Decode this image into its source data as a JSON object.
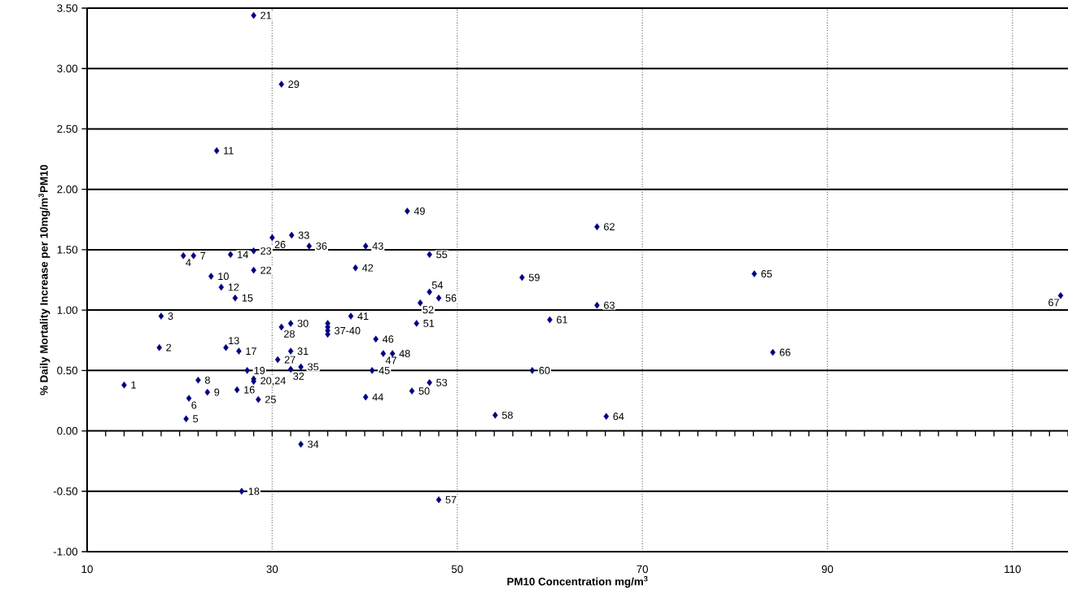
{
  "chart_data": {
    "type": "scatter",
    "xlabel": "PM10 Concentration mg/m$^{3}$",
    "ylabel": "% Daily Mortality Increase per 10mg/m$^{3}$PM10",
    "x": [
      14.0,
      17.8,
      18.0,
      20.4,
      20.7,
      21.0,
      21.5,
      22.0,
      23.0,
      23.4,
      24.0,
      24.5,
      25.0,
      25.5,
      26.0,
      26.2,
      26.4,
      26.7,
      27.3,
      28.0,
      28.0,
      28.0,
      28.0,
      28.0,
      28.5,
      30.0,
      30.6,
      31.0,
      31.0,
      32.0,
      32.0,
      32.0,
      32.1,
      33.1,
      33.1,
      34.0,
      36.0,
      36.0,
      36.0,
      36.0,
      38.5,
      39.0,
      40.1,
      40.1,
      40.8,
      41.2,
      42.0,
      43.0,
      44.6,
      45.1,
      45.6,
      46.0,
      47.0,
      47.0,
      47.0,
      48.0,
      48.0,
      54.1,
      57.0,
      58.1,
      60.0,
      65.1,
      65.1,
      66.1,
      82.1,
      84.1,
      115.2
    ],
    "values": [
      0.38,
      0.69,
      0.95,
      1.45,
      0.1,
      0.27,
      1.45,
      0.42,
      0.32,
      1.28,
      2.32,
      1.19,
      0.69,
      1.46,
      1.1,
      0.34,
      0.66,
      -0.5,
      0.5,
      0.43,
      3.44,
      1.33,
      1.49,
      0.41,
      0.26,
      1.6,
      0.59,
      0.86,
      2.87,
      0.89,
      0.66,
      0.51,
      1.62,
      -0.11,
      0.53,
      1.53,
      0.89,
      0.86,
      0.83,
      0.8,
      0.95,
      1.35,
      1.53,
      0.28,
      0.5,
      0.76,
      0.64,
      0.64,
      1.82,
      0.33,
      0.89,
      1.06,
      0.4,
      1.15,
      1.46,
      1.1,
      -0.57,
      0.13,
      1.27,
      0.5,
      0.92,
      1.69,
      1.04,
      0.12,
      1.3,
      0.65,
      1.12
    ],
    "color": "#000080",
    "marker": "diamond",
    "grid": true,
    "xlim": [
      10,
      116
    ],
    "ylim": [
      -1,
      3.5
    ],
    "xticks": [
      10,
      {
        "value": 12,
        "label": null
      },
      {
        "value": 14,
        "label": null
      },
      {
        "value": 16,
        "label": null
      },
      {
        "value": 18,
        "label": null
      },
      {
        "value": 20,
        "label": null
      },
      {
        "value": 22,
        "label": null
      },
      {
        "value": 24,
        "label": null
      },
      {
        "value": 26,
        "label": null
      },
      {
        "value": 28,
        "label": null
      },
      30,
      {
        "value": 32,
        "label": null
      },
      {
        "value": 34,
        "label": null
      },
      {
        "value": 36,
        "label": null
      },
      {
        "value": 38,
        "label": null
      },
      {
        "value": 40,
        "label": null
      },
      {
        "value": 42,
        "label": null
      },
      {
        "value": 44,
        "label": null
      },
      {
        "value": 46,
        "label": null
      },
      {
        "value": 48,
        "label": null
      },
      50,
      {
        "value": 52,
        "label": null
      },
      {
        "value": 54,
        "label": null
      },
      {
        "value": 56,
        "label": null
      },
      {
        "value": 58,
        "label": null
      },
      {
        "value": 60,
        "label": null
      },
      {
        "value": 62,
        "label": null
      },
      {
        "value": 64,
        "label": null
      },
      {
        "value": 66,
        "label": null
      },
      {
        "value": 68,
        "label": null
      },
      70,
      {
        "value": 72,
        "label": null
      },
      {
        "value": 74,
        "label": null
      },
      {
        "value": 76,
        "label": null
      },
      {
        "value": 78,
        "label": null
      },
      {
        "value": 80,
        "label": null
      },
      {
        "value": 82,
        "label": null
      },
      {
        "value": 84,
        "label": null
      },
      {
        "value": 86,
        "label": null
      },
      {
        "value": 88,
        "label": null
      },
      90,
      {
        "value": 92,
        "label": null
      },
      {
        "value": 94,
        "label": null
      },
      {
        "value": 96,
        "label": null
      },
      {
        "value": 98,
        "label": null
      },
      {
        "value": 100,
        "label": null
      },
      {
        "value": 102,
        "label": null
      },
      {
        "value": 104,
        "label": null
      },
      {
        "value": 106,
        "label": null
      },
      {
        "value": 108,
        "label": null
      },
      110,
      {
        "value": 112,
        "label": null
      },
      {
        "value": 114,
        "label": null
      },
      {
        "value": 116,
        "label": null
      }
    ],
    "yticks": [
      {
        "value": -1,
        "label": "-1.00"
      },
      {
        "value": -0.5,
        "label": "-0.50"
      },
      {
        "value": 0,
        "label": "0.00"
      },
      {
        "value": 0.5,
        "label": "0.50"
      },
      {
        "value": 1,
        "label": "1.00"
      },
      {
        "value": 1.5,
        "label": "1.50"
      },
      {
        "value": 2,
        "label": "2.00"
      },
      {
        "value": 2.5,
        "label": "2.50"
      },
      {
        "value": 3,
        "label": "3.00"
      },
      {
        "value": 3.5,
        "label": "3.50"
      }
    ],
    "annotations": [
      {
        "text": "1",
        "x": 14.0,
        "y": 0.38
      },
      {
        "text": "2",
        "x": 17.8,
        "y": 0.69
      },
      {
        "text": "3",
        "x": 18.0,
        "y": 0.95
      },
      {
        "text": "4",
        "x": 20.4,
        "y": 1.45
      },
      {
        "text": "5",
        "x": 20.7,
        "y": 0.1
      },
      {
        "text": "6",
        "x": 21.0,
        "y": 0.27
      },
      {
        "text": "7",
        "x": 21.5,
        "y": 1.45
      },
      {
        "text": "8",
        "x": 22.0,
        "y": 0.42
      },
      {
        "text": "9",
        "x": 23.0,
        "y": 0.32
      },
      {
        "text": "10",
        "x": 23.4,
        "y": 1.28
      },
      {
        "text": "11",
        "x": 24.0,
        "y": 2.32
      },
      {
        "text": "12",
        "x": 24.5,
        "y": 1.19
      },
      {
        "text": "13",
        "x": 25.0,
        "y": 0.69
      },
      {
        "text": "14",
        "x": 25.5,
        "y": 1.46
      },
      {
        "text": "15",
        "x": 26.0,
        "y": 1.1
      },
      {
        "text": "16",
        "x": 26.2,
        "y": 0.34
      },
      {
        "text": "17",
        "x": 26.4,
        "y": 0.66
      },
      {
        "text": "18",
        "x": 26.7,
        "y": -0.5
      },
      {
        "text": "19",
        "x": 27.3,
        "y": 0.5
      },
      {
        "text": "20,24",
        "x": 28.0,
        "y": 0.41
      },
      {
        "text": "21",
        "x": 28.0,
        "y": 3.44
      },
      {
        "text": "22",
        "x": 28.0,
        "y": 1.33
      },
      {
        "text": "23",
        "x": 28.0,
        "y": 1.49
      },
      {
        "text": "25",
        "x": 28.5,
        "y": 0.26
      },
      {
        "text": "26",
        "x": 30.0,
        "y": 1.6
      },
      {
        "text": "27",
        "x": 30.6,
        "y": 0.59
      },
      {
        "text": "28",
        "x": 31.0,
        "y": 0.86
      },
      {
        "text": "29",
        "x": 31.0,
        "y": 2.87
      },
      {
        "text": "30",
        "x": 32.0,
        "y": 0.89
      },
      {
        "text": "31",
        "x": 32.0,
        "y": 0.66
      },
      {
        "text": "32",
        "x": 32.0,
        "y": 0.51
      },
      {
        "text": "33",
        "x": 32.1,
        "y": 1.62
      },
      {
        "text": "34",
        "x": 33.1,
        "y": -0.11
      },
      {
        "text": "35",
        "x": 33.1,
        "y": 0.53
      },
      {
        "text": "36",
        "x": 34.0,
        "y": 1.53
      },
      {
        "text": "37-40",
        "x": 36.0,
        "y": 0.83
      },
      {
        "text": "41",
        "x": 38.5,
        "y": 0.95
      },
      {
        "text": "42",
        "x": 39.0,
        "y": 1.35
      },
      {
        "text": "43",
        "x": 40.1,
        "y": 1.53
      },
      {
        "text": "44",
        "x": 40.1,
        "y": 0.28
      },
      {
        "text": "45",
        "x": 40.8,
        "y": 0.5
      },
      {
        "text": "46",
        "x": 41.2,
        "y": 0.76
      },
      {
        "text": "47",
        "x": 42.0,
        "y": 0.64
      },
      {
        "text": "48",
        "x": 43.0,
        "y": 0.64
      },
      {
        "text": "49",
        "x": 44.6,
        "y": 1.82
      },
      {
        "text": "50",
        "x": 45.1,
        "y": 0.33
      },
      {
        "text": "51",
        "x": 45.6,
        "y": 0.89
      },
      {
        "text": "52",
        "x": 46.0,
        "y": 1.06
      },
      {
        "text": "53",
        "x": 47.0,
        "y": 0.4
      },
      {
        "text": "54",
        "x": 47.0,
        "y": 1.15
      },
      {
        "text": "55",
        "x": 47.0,
        "y": 1.46
      },
      {
        "text": "56",
        "x": 48.0,
        "y": 1.1
      },
      {
        "text": "57",
        "x": 48.0,
        "y": -0.57
      },
      {
        "text": "58",
        "x": 54.1,
        "y": 0.13
      },
      {
        "text": "59",
        "x": 57.0,
        "y": 1.27
      },
      {
        "text": "60",
        "x": 58.1,
        "y": 0.5
      },
      {
        "text": "61",
        "x": 60.0,
        "y": 0.92
      },
      {
        "text": "62",
        "x": 65.1,
        "y": 1.69
      },
      {
        "text": "63",
        "x": 65.1,
        "y": 1.04
      },
      {
        "text": "64",
        "x": 66.1,
        "y": 0.12
      },
      {
        "text": "65",
        "x": 82.1,
        "y": 1.3
      },
      {
        "text": "66",
        "x": 84.1,
        "y": 0.65
      },
      {
        "text": "67",
        "x": 115.2,
        "y": 1.12
      }
    ]
  }
}
